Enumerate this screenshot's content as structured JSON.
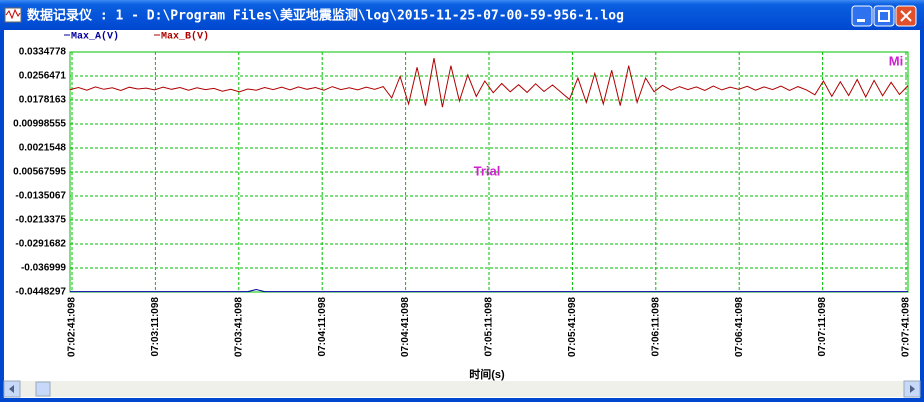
{
  "window": {
    "title": "数据记录仪 : 1 - D:\\Program Files\\美亚地震监测\\log\\2015-11-25-07-00-59-956-1.log"
  },
  "chart_data": {
    "type": "line",
    "xlabel": "时间(s)",
    "annotations": [
      "Trial",
      "Mi"
    ],
    "xticks": [
      "07:02:41:098",
      "07:03:11:098",
      "07:03:41:098",
      "07:04:11:098",
      "07:04:41:098",
      "07:05:11:098",
      "07:05:41:098",
      "07:06:11:098",
      "07:06:41:098",
      "07:07:11:098",
      "07:07:41:098"
    ],
    "ylim": [
      -0.0448297,
      0.0334778
    ],
    "yticks": [
      0.0334778,
      0.0256471,
      0.0178163,
      0.00998555,
      0.0021548,
      {
        "value": -0.00567595,
        "label": "0.00567595"
      },
      -0.0135067,
      -0.0213375,
      -0.0291682,
      -0.036999,
      -0.0448297
    ],
    "grid": true,
    "series": [
      {
        "name": "Max_A(V)",
        "color": "#0000a0",
        "values": [
          -0.0447,
          -0.0447,
          -0.0447,
          -0.0447,
          -0.0447,
          -0.0447,
          -0.0447,
          -0.0447,
          -0.0447,
          -0.0447,
          -0.0447,
          -0.0447,
          -0.0447,
          -0.0447,
          -0.0447,
          -0.0447,
          -0.0447,
          -0.0447,
          -0.0447,
          -0.0447,
          -0.0447,
          -0.0447,
          -0.044,
          -0.0447,
          -0.0447,
          -0.0447,
          -0.0447,
          -0.0447,
          -0.0447,
          -0.0447,
          -0.0447,
          -0.0447,
          -0.0447,
          -0.0447,
          -0.0447,
          -0.0447,
          -0.0447,
          -0.0447,
          -0.0447,
          -0.0447,
          -0.0447,
          -0.0447,
          -0.0447,
          -0.0447,
          -0.0447,
          -0.0447,
          -0.0447,
          -0.0447,
          -0.0447,
          -0.0447,
          -0.0447,
          -0.0447,
          -0.0447,
          -0.0447,
          -0.0447,
          -0.0447,
          -0.0447,
          -0.0447,
          -0.0447,
          -0.0447,
          -0.0447,
          -0.0447,
          -0.0447,
          -0.0447,
          -0.0447,
          -0.0447,
          -0.0447,
          -0.0447,
          -0.0447,
          -0.0447,
          -0.0447,
          -0.0447,
          -0.0447,
          -0.0447,
          -0.0447,
          -0.0447,
          -0.0447,
          -0.0447,
          -0.0447,
          -0.0447,
          -0.0447,
          -0.0447,
          -0.0447,
          -0.0447,
          -0.0447,
          -0.0447,
          -0.0447,
          -0.0447,
          -0.0447,
          -0.0447,
          -0.0447,
          -0.0447,
          -0.0447,
          -0.0447,
          -0.0447,
          -0.0447,
          -0.0447,
          -0.0447,
          -0.0447,
          -0.0447
        ]
      },
      {
        "name": "Max_B(V)",
        "color": "#b00000",
        "values": [
          0.0212,
          0.0219,
          0.021,
          0.0221,
          0.0213,
          0.0218,
          0.0209,
          0.022,
          0.0214,
          0.0217,
          0.0211,
          0.022,
          0.0213,
          0.0219,
          0.021,
          0.0218,
          0.0212,
          0.0216,
          0.0207,
          0.0213,
          0.0205,
          0.0214,
          0.021,
          0.0219,
          0.0212,
          0.022,
          0.0211,
          0.0221,
          0.0213,
          0.0219,
          0.021,
          0.0222,
          0.0212,
          0.0218,
          0.0211,
          0.022,
          0.0213,
          0.0222,
          0.0185,
          0.0255,
          0.0165,
          0.0285,
          0.016,
          0.0315,
          0.0155,
          0.029,
          0.0175,
          0.026,
          0.019,
          0.024,
          0.0202,
          0.0232,
          0.0205,
          0.0228,
          0.0203,
          0.0231,
          0.0206,
          0.0227,
          0.0204,
          0.018,
          0.025,
          0.017,
          0.0265,
          0.0165,
          0.0275,
          0.016,
          0.029,
          0.017,
          0.025,
          0.0205,
          0.0226,
          0.021,
          0.0222,
          0.0212,
          0.0221,
          0.0209,
          0.0224,
          0.0211,
          0.022,
          0.0213,
          0.0223,
          0.021,
          0.0221,
          0.0212,
          0.0224,
          0.0209,
          0.0222,
          0.0211,
          0.0195,
          0.024,
          0.019,
          0.0238,
          0.0193,
          0.0245,
          0.0188,
          0.0242,
          0.0192,
          0.0236,
          0.0196,
          0.0225
        ]
      }
    ]
  }
}
